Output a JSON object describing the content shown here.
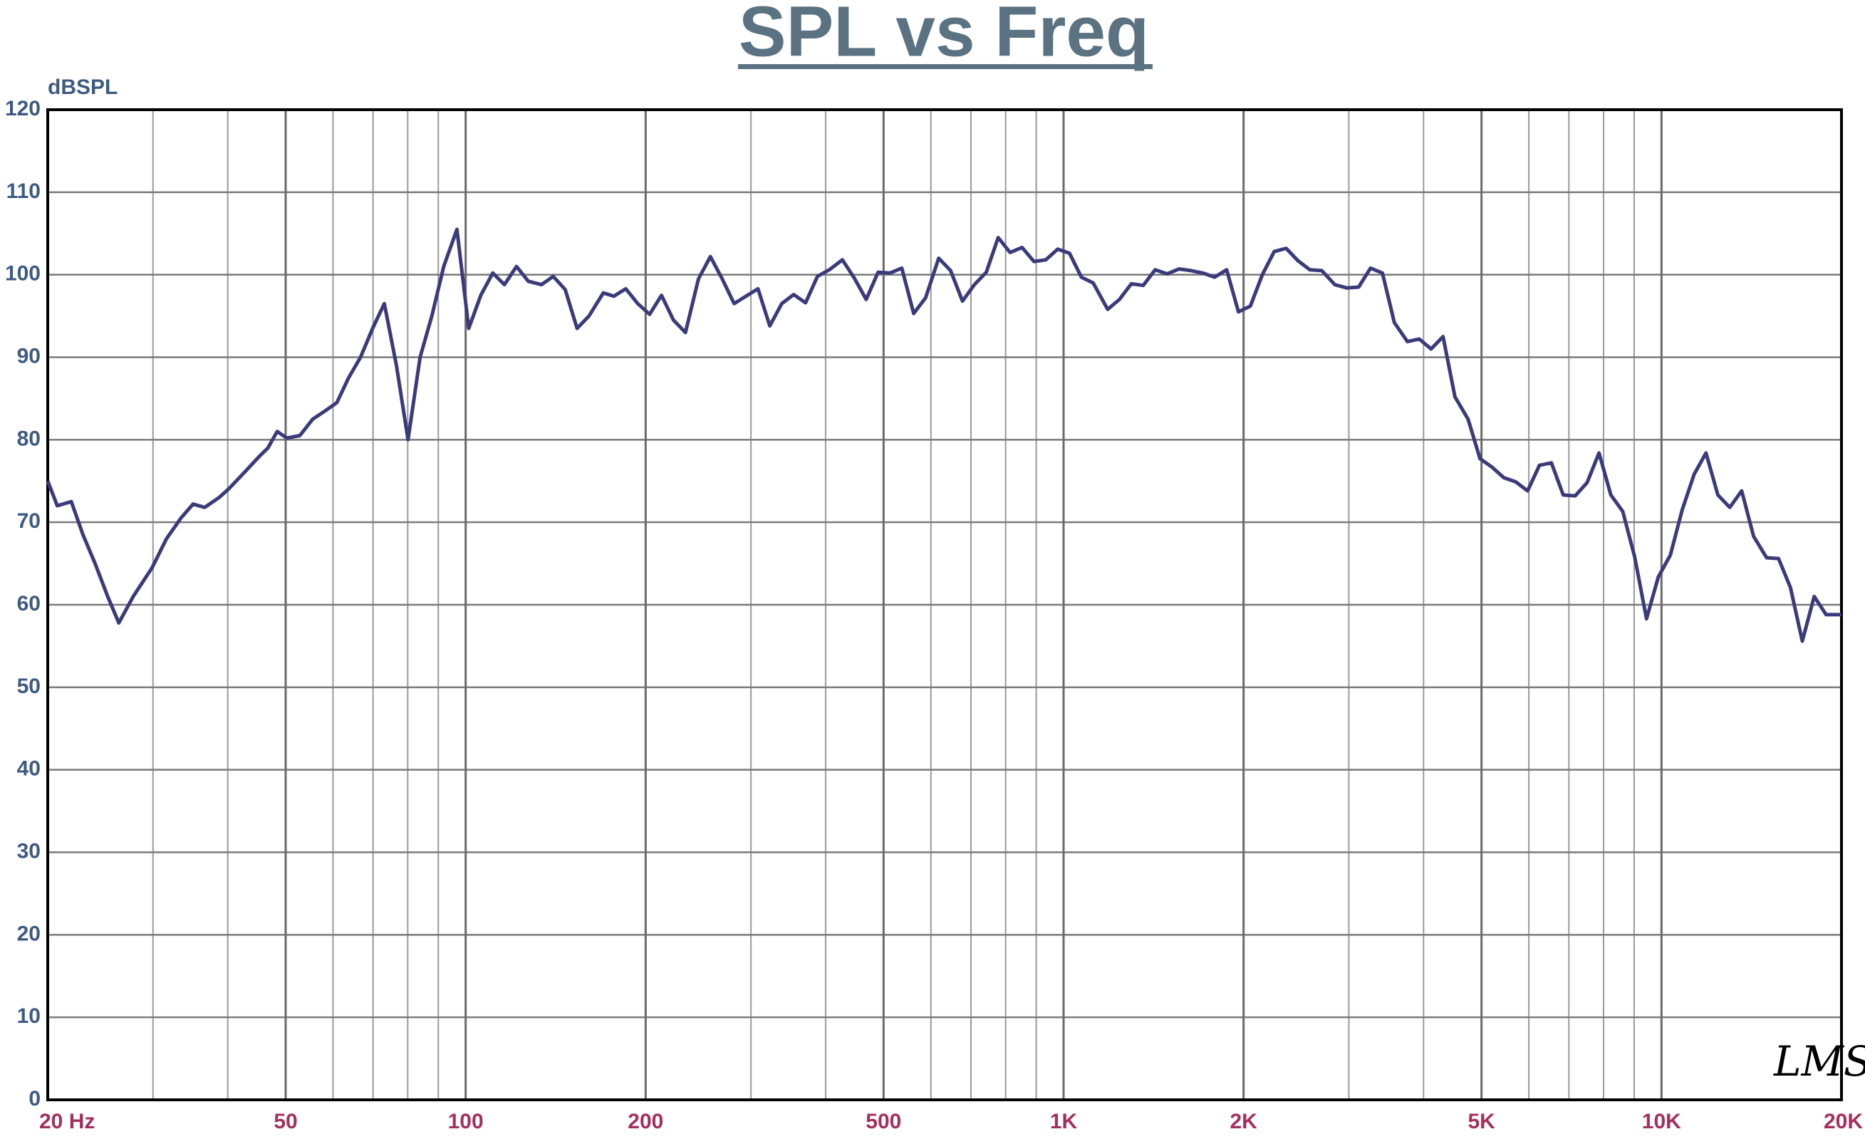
{
  "chart_data": {
    "type": "line",
    "title": "SPL vs Freq",
    "ylabel": "dBSPL",
    "logo": "LMS",
    "xscale": "log",
    "grid": true,
    "color": "#3b3b7c",
    "xlim": [
      20,
      20000
    ],
    "ylim": [
      0,
      120
    ],
    "yticks": [
      0,
      10,
      20,
      30,
      40,
      50,
      60,
      70,
      80,
      90,
      100,
      110,
      120
    ],
    "xticks": [
      {
        "value": 20,
        "label": "20  Hz"
      },
      50,
      100,
      200,
      500,
      {
        "value": 1000,
        "label": "1K"
      },
      {
        "value": 2000,
        "label": "2K"
      },
      {
        "value": 5000,
        "label": "5K"
      },
      {
        "value": 10000,
        "label": "10K"
      },
      {
        "value": 20000,
        "label": "20K"
      }
    ],
    "x_minor_ticks": [
      30,
      40,
      60,
      70,
      80,
      90,
      300,
      400,
      600,
      700,
      800,
      900,
      3000,
      4000,
      6000,
      7000,
      8000,
      9000
    ],
    "x": [
      20,
      20.75,
      21.9,
      22.9,
      24.0,
      25.2,
      26.3,
      27.8,
      29.9,
      31.6,
      33.4,
      35.0,
      36.6,
      38.7,
      40.1,
      42.6,
      45.2,
      46.7,
      48.4,
      50.2,
      52.8,
      55.5,
      58.2,
      60.9,
      63.7,
      66.7,
      69.9,
      73.1,
      76.6,
      80.1,
      83.9,
      87.8,
      91.9,
      96.7,
      101.2,
      106.0,
      111.0,
      116.1,
      121.6,
      127.3,
      133.9,
      140.1,
      146.7,
      153.6,
      160.8,
      169.9,
      177.0,
      185.3,
      194.0,
      203.1,
      212.6,
      222.6,
      233.1,
      245.1,
      256.6,
      268.6,
      281.2,
      294.4,
      308.2,
      322.6,
      337.8,
      353.6,
      370.2,
      387.6,
      405.7,
      426.6,
      446.6,
      467.6,
      489.5,
      512.5,
      536.3,
      561.5,
      587.8,
      618.2,
      647.2,
      677.6,
      709.3,
      742.6,
      777.4,
      813.9,
      852.1,
      892.1,
      933.7,
      977.5,
      1023,
      1071,
      1121,
      1185,
      1240,
      1298,
      1359,
      1423,
      1490,
      1560,
      1633,
      1709,
      1789,
      1874,
      1961,
      2053,
      2150,
      2250,
      2356,
      2466,
      2582,
      2703,
      2842,
      2976,
      3115,
      3261,
      3414,
      3574,
      3758,
      3934,
      4119,
      4312,
      4514,
      4748,
      4971,
      5204,
      5448,
      5703,
      5971,
      6250,
      6544,
      6850,
      7172,
      7508,
      7860,
      8229,
      8615,
      9019,
      9438,
      9881,
      10345,
      10830,
      11338,
      11869,
      12427,
      13009,
      13619,
      14257,
      14992,
      15694,
      16430,
      17200,
      18007,
      18850,
      19735,
      20000
    ],
    "values": [
      75,
      72,
      72.5,
      68.5,
      65,
      61,
      57.8,
      61,
      64.5,
      68,
      70.5,
      72.2,
      71.8,
      73,
      74,
      76,
      78,
      79,
      81,
      80.2,
      80.5,
      82.5,
      83.5,
      84.5,
      87.5,
      90,
      93.5,
      96.5,
      89,
      80,
      90,
      95,
      101,
      105.5,
      93.5,
      97.5,
      100.2,
      98.8,
      101,
      99.2,
      98.8,
      99.8,
      98.2,
      93.5,
      95,
      97.8,
      97.4,
      98.3,
      96.5,
      95.2,
      97.5,
      94.5,
      93,
      99.5,
      102.2,
      99.5,
      96.5,
      97.4,
      98.3,
      93.8,
      96.5,
      97.6,
      96.6,
      99.8,
      100.6,
      101.8,
      99.6,
      97,
      100.3,
      100.2,
      100.8,
      95.3,
      97.2,
      102,
      100.5,
      96.8,
      98.8,
      100.3,
      104.5,
      102.7,
      103.3,
      101.6,
      101.8,
      103.1,
      102.6,
      99.7,
      99,
      95.8,
      97,
      98.9,
      98.7,
      100.6,
      100.1,
      100.7,
      100.5,
      100.2,
      99.7,
      100.6,
      95.5,
      96.2,
      100,
      102.8,
      103.2,
      101.7,
      100.6,
      100.5,
      98.8,
      98.4,
      98.5,
      100.8,
      100.2,
      94.2,
      91.9,
      92.2,
      91,
      92.5,
      85.2,
      82.5,
      77.7,
      76.7,
      75.4,
      74.9,
      73.8,
      76.9,
      77.2,
      73.3,
      73.2,
      74.8,
      78.4,
      73.3,
      71.3,
      65.8,
      58.3,
      63.4,
      66,
      71.5,
      75.8,
      78.4,
      73.3,
      71.8,
      73.8,
      68.3,
      65.7,
      65.6,
      62.1,
      55.6,
      61,
      58.8,
      58.8,
      58.8
    ]
  }
}
